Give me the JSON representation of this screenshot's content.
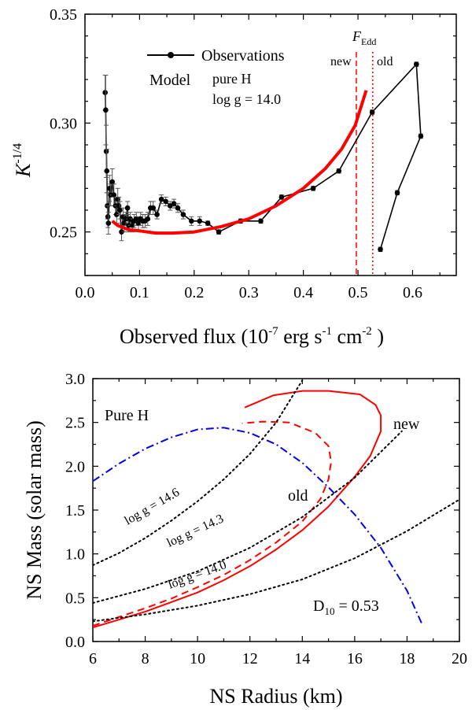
{
  "chart_data": [
    {
      "type": "scatter",
      "ylabel": {
        "main": "K",
        "sup": "-1/4"
      },
      "xlabel": {
        "p1": "Observed flux  (10",
        "s1": "-7",
        "p2": " erg s",
        "s2": "-1",
        "p3": " cm",
        "s3": "-2",
        "p4": " )"
      },
      "xlim": [
        0.0,
        0.68
      ],
      "ylim": [
        0.23,
        0.35
      ],
      "xticks": [
        "0.0",
        "0.1",
        "0.2",
        "0.3",
        "0.4",
        "0.5",
        "0.6"
      ],
      "yticks": [
        "0.25",
        "0.30",
        "0.35"
      ],
      "legend": {
        "observations": "Observations",
        "model": "Model",
        "atmosphere": "pure H",
        "logg": "log g = 14.0"
      },
      "feddington": {
        "main": "F",
        "sub": "Edd",
        "new_label": "new",
        "old_label": "old",
        "new_x": 0.497,
        "old_x": 0.527
      },
      "series": [
        {
          "name": "Observations",
          "color": "#000000",
          "x": [
            0.037,
            0.038,
            0.039,
            0.04,
            0.041,
            0.042,
            0.043,
            0.045,
            0.047,
            0.05,
            0.053,
            0.056,
            0.058,
            0.06,
            0.062,
            0.064,
            0.067,
            0.07,
            0.072,
            0.075,
            0.078,
            0.08,
            0.083,
            0.087,
            0.09,
            0.094,
            0.098,
            0.102,
            0.106,
            0.11,
            0.115,
            0.12,
            0.125,
            0.132,
            0.14,
            0.148,
            0.156,
            0.163,
            0.17,
            0.18,
            0.195,
            0.21,
            0.225,
            0.245,
            0.285,
            0.322,
            0.36,
            0.418,
            0.465,
            0.526,
            0.607,
            0.615,
            0.572,
            0.541
          ],
          "y": [
            0.314,
            0.306,
            0.287,
            0.278,
            0.262,
            0.257,
            0.254,
            0.27,
            0.267,
            0.273,
            0.267,
            0.262,
            0.258,
            0.265,
            0.262,
            0.26,
            0.25,
            0.257,
            0.254,
            0.256,
            0.261,
            0.253,
            0.256,
            0.253,
            0.255,
            0.256,
            0.254,
            0.256,
            0.255,
            0.255,
            0.256,
            0.261,
            0.261,
            0.258,
            0.265,
            0.264,
            0.262,
            0.263,
            0.261,
            0.258,
            0.255,
            0.255,
            0.254,
            0.25,
            0.255,
            0.255,
            0.266,
            0.27,
            0.278,
            0.305,
            0.327,
            0.294,
            0.268,
            0.242
          ],
          "yerr": [
            0.008,
            0.016,
            0.012,
            0.01,
            0.006,
            0.005,
            0.005,
            0.006,
            0.005,
            0.006,
            0.005,
            0.004,
            0.004,
            0.005,
            0.004,
            0.004,
            0.004,
            0.004,
            0.004,
            0.003,
            0.003,
            0.003,
            0.003,
            0.003,
            0.003,
            0.003,
            0.003,
            0.003,
            0.003,
            0.003,
            0.003,
            0.003,
            0.003,
            0.002,
            0.002,
            0.002,
            0.002,
            0.002,
            0.002,
            0.002,
            0.002,
            0.002,
            0.001,
            0.001,
            0.001,
            0.001,
            0.001,
            0.001,
            0.001,
            0.001,
            0.001,
            0.001,
            0.001,
            0.001
          ]
        },
        {
          "name": "Model",
          "color": "#ff0000",
          "type": "line",
          "x": [
            0.05,
            0.06,
            0.08,
            0.1,
            0.13,
            0.16,
            0.2,
            0.25,
            0.3,
            0.35,
            0.4,
            0.44,
            0.47,
            0.495,
            0.515
          ],
          "y": [
            0.255,
            0.253,
            0.251,
            0.2505,
            0.2495,
            0.2495,
            0.25,
            0.2525,
            0.256,
            0.262,
            0.27,
            0.279,
            0.288,
            0.299,
            0.315
          ]
        }
      ]
    },
    {
      "type": "line",
      "xlabel": "NS Radius (km)",
      "ylabel": "NS Mass (solar mass)",
      "xlim": [
        6,
        20
      ],
      "ylim": [
        0.0,
        3.0
      ],
      "xticks": [
        "6",
        "8",
        "10",
        "12",
        "14",
        "16",
        "18",
        "20"
      ],
      "yticks": [
        "0.0",
        "0.5",
        "1.0",
        "1.5",
        "2.0",
        "2.5",
        "3.0"
      ],
      "annotations": {
        "pure_h": "Pure H",
        "new": "new",
        "old": "old",
        "logg_146": "log g = 14.6",
        "logg_143": "log g = 14.3",
        "logg_140": "log g = 14.0",
        "distance": {
          "main": "D",
          "sub": "10",
          "rest": " = 0.53"
        }
      },
      "series": [
        {
          "name": "new",
          "color": "#ff0000",
          "style": "solid",
          "x": [
            6.0,
            7.0,
            8.0,
            9.0,
            10.0,
            11.0,
            12.0,
            13.0,
            14.0,
            15.0,
            16.0,
            16.6,
            17.0,
            17.0,
            16.8,
            16.2,
            15.0,
            14.0,
            12.9,
            11.8
          ],
          "y": [
            0.16,
            0.25,
            0.34,
            0.45,
            0.56,
            0.7,
            0.86,
            1.05,
            1.27,
            1.54,
            1.88,
            2.12,
            2.4,
            2.58,
            2.7,
            2.82,
            2.86,
            2.86,
            2.81,
            2.67
          ]
        },
        {
          "name": "old",
          "color": "#ff0000",
          "style": "dashed",
          "x": [
            6.0,
            7.0,
            8.0,
            9.0,
            10.0,
            11.0,
            12.0,
            13.0,
            14.0,
            14.7,
            15.0,
            15.1,
            15.0,
            14.5,
            13.5,
            12.5,
            11.7
          ],
          "y": [
            0.18,
            0.28,
            0.38,
            0.49,
            0.62,
            0.76,
            0.93,
            1.13,
            1.37,
            1.63,
            1.85,
            2.05,
            2.23,
            2.38,
            2.5,
            2.51,
            2.49
          ]
        },
        {
          "name": "D10",
          "color": "#0000ee",
          "style": "dashdot",
          "x": [
            6.0,
            7.0,
            8.0,
            9.0,
            10.0,
            11.0,
            12.0,
            13.0,
            14.0,
            15.0,
            16.0,
            17.0,
            18.0,
            18.6
          ],
          "y": [
            1.83,
            2.03,
            2.2,
            2.33,
            2.42,
            2.44,
            2.38,
            2.25,
            2.04,
            1.76,
            1.45,
            1.07,
            0.58,
            0.18
          ]
        },
        {
          "name": "logg 14.6",
          "color": "#000000",
          "style": "dotted",
          "x": [
            6.0,
            7.0,
            8.0,
            9.0,
            10.0,
            11.0,
            12.0,
            13.0,
            14.0
          ],
          "y": [
            0.87,
            1.01,
            1.18,
            1.38,
            1.6,
            1.85,
            2.14,
            2.5,
            2.98
          ]
        },
        {
          "name": "logg 14.3",
          "color": "#000000",
          "style": "dotted",
          "x": [
            6.0,
            8.0,
            10.0,
            12.0,
            14.0,
            16.0,
            17.8
          ],
          "y": [
            0.44,
            0.6,
            0.8,
            1.07,
            1.42,
            1.87,
            2.4
          ]
        },
        {
          "name": "logg 14.0",
          "color": "#000000",
          "style": "dotted",
          "x": [
            6.0,
            8.0,
            10.0,
            12.0,
            14.0,
            16.0,
            18.0,
            20.0
          ],
          "y": [
            0.23,
            0.31,
            0.41,
            0.54,
            0.71,
            0.95,
            1.26,
            1.62
          ]
        }
      ]
    }
  ]
}
